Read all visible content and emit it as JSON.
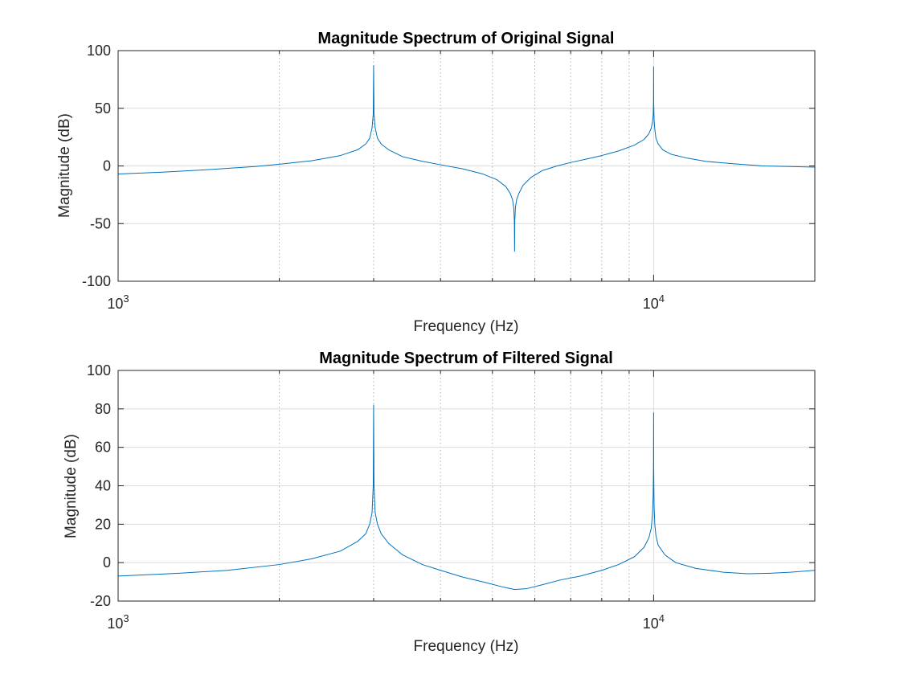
{
  "chart_data": [
    {
      "type": "line",
      "title": "Magnitude Spectrum of Original Signal",
      "xlabel": "Frequency (Hz)",
      "ylabel": "Magnitude (dB)",
      "xscale": "log",
      "xlim": [
        1000,
        20000
      ],
      "ylim": [
        -100,
        100
      ],
      "yticks": [
        -100,
        -50,
        0,
        50,
        100
      ],
      "ytick_labels": [
        "-100",
        "-50",
        "0",
        "50",
        "100"
      ],
      "xtick_labels": [
        {
          "base": "10",
          "exp": "3",
          "value": 1000
        },
        {
          "base": "10",
          "exp": "4",
          "value": 10000
        }
      ],
      "grid": true,
      "color": "#0072BD",
      "series": [
        {
          "x": [
            1000,
            1200,
            1500,
            1800,
            2000,
            2300,
            2600,
            2800,
            2900,
            2950,
            2980,
            2995,
            3000,
            3005,
            3020,
            3050,
            3100,
            3200,
            3400,
            3700,
            4000,
            4400,
            4800,
            5100,
            5300,
            5400,
            5450,
            5480,
            5495,
            5500,
            5505,
            5520,
            5550,
            5600,
            5700,
            5900,
            6200,
            6600,
            7000,
            7500,
            8000,
            8600,
            9200,
            9600,
            9800,
            9900,
            9950,
            9980,
            9995,
            10000,
            10005,
            10020,
            10050,
            10100,
            10200,
            10400,
            10800,
            11500,
            12500,
            14000,
            16000,
            18000,
            20000
          ],
          "y": [
            -7,
            -5.5,
            -3,
            -0.5,
            1.5,
            4.5,
            9,
            14,
            19,
            24,
            33,
            45,
            87,
            45,
            33,
            24,
            19,
            14,
            8,
            4,
            1,
            -2.5,
            -7,
            -12,
            -18,
            -24,
            -29,
            -36,
            -48,
            -74,
            -48,
            -36,
            -29,
            -24,
            -17,
            -10,
            -4,
            0,
            3,
            6,
            9,
            13,
            18,
            23,
            28,
            33,
            38,
            44,
            55,
            86,
            55,
            40,
            32,
            24,
            19,
            14,
            10,
            7,
            4,
            2,
            0,
            -0.5,
            -1
          ]
        }
      ]
    },
    {
      "type": "line",
      "title": "Magnitude Spectrum of Filtered Signal",
      "xlabel": "Frequency (Hz)",
      "ylabel": "Magnitude (dB)",
      "xscale": "log",
      "xlim": [
        1000,
        20000
      ],
      "ylim": [
        -20,
        100
      ],
      "yticks": [
        -20,
        0,
        20,
        40,
        60,
        80,
        100
      ],
      "ytick_labels": [
        "-20",
        "0",
        "20",
        "40",
        "60",
        "80",
        "100"
      ],
      "xtick_labels": [
        {
          "base": "10",
          "exp": "3",
          "value": 1000
        },
        {
          "base": "10",
          "exp": "4",
          "value": 10000
        }
      ],
      "grid": true,
      "color": "#0072BD",
      "series": [
        {
          "x": [
            1000,
            1300,
            1600,
            2000,
            2300,
            2600,
            2800,
            2900,
            2950,
            2980,
            2995,
            3000,
            3005,
            3020,
            3050,
            3100,
            3200,
            3400,
            3700,
            4000,
            4400,
            4800,
            5200,
            5500,
            5800,
            6200,
            6700,
            7300,
            8000,
            8600,
            9200,
            9600,
            9800,
            9900,
            9950,
            9980,
            9995,
            10000,
            10005,
            10020,
            10050,
            10100,
            10200,
            10500,
            11000,
            12000,
            13500,
            15000,
            16500,
            18000,
            20000
          ],
          "y": [
            -7,
            -5.5,
            -4,
            -1,
            2,
            6,
            11,
            15,
            20,
            26,
            40,
            82,
            40,
            26,
            20,
            15,
            10,
            4,
            -1,
            -4,
            -7.5,
            -10,
            -12.5,
            -14,
            -13.5,
            -11.5,
            -9,
            -7,
            -4,
            -1,
            3,
            8,
            13,
            18,
            25,
            35,
            50,
            78,
            48,
            30,
            20,
            14,
            9,
            4,
            0,
            -3,
            -5,
            -5.8,
            -5.5,
            -5,
            -4
          ]
        }
      ]
    }
  ]
}
